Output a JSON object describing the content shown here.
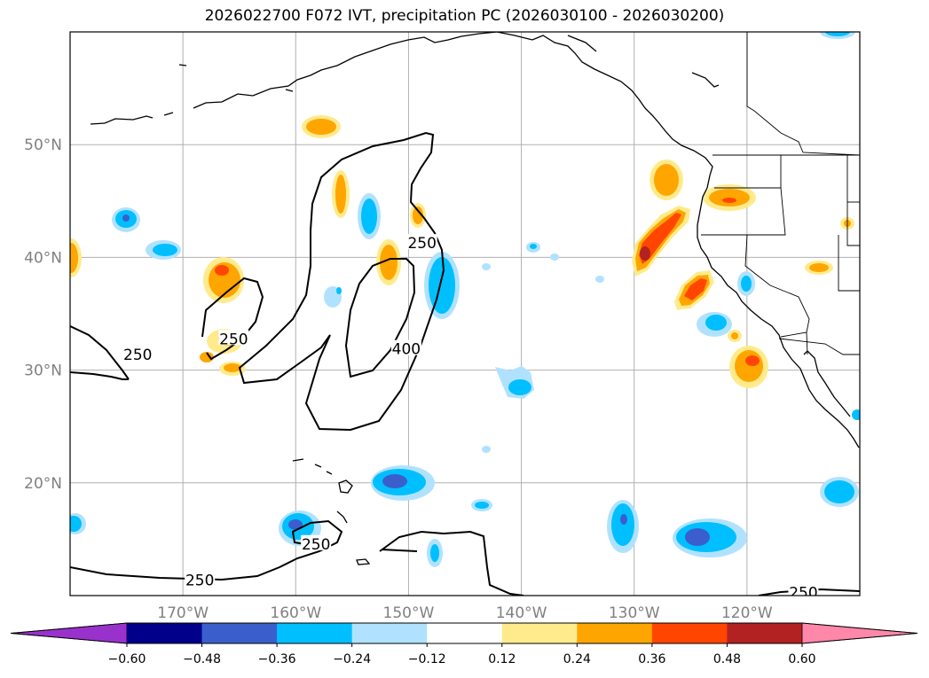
{
  "title": "2026022700 F072 IVT, precipitation PC (2026030100 - 2026030200)",
  "map": {
    "lon_range": [
      -180,
      -110
    ],
    "lat_range": [
      10,
      60
    ],
    "lat_ticks": [
      {
        "value": 20,
        "label": "20°N"
      },
      {
        "value": 30,
        "label": "30°N"
      },
      {
        "value": 40,
        "label": "40°N"
      },
      {
        "value": 50,
        "label": "50°N"
      }
    ],
    "lon_ticks": [
      {
        "value": -170,
        "label": "170°W"
      },
      {
        "value": -160,
        "label": "160°W"
      },
      {
        "value": -150,
        "label": "150°W"
      },
      {
        "value": -140,
        "label": "140°W"
      },
      {
        "value": -130,
        "label": "130°W"
      },
      {
        "value": -120,
        "label": "120°W"
      }
    ],
    "grid": true,
    "ivt_contour_labels": [
      {
        "text": "250",
        "lon": -165.5,
        "lat": 32.7
      },
      {
        "text": "250",
        "lon": -174,
        "lat": 31.3
      },
      {
        "text": "250",
        "lon": -148.8,
        "lat": 41.2
      },
      {
        "text": "400",
        "lon": -150.2,
        "lat": 31.8
      },
      {
        "text": "250",
        "lon": -158.2,
        "lat": 14.5
      },
      {
        "text": "250",
        "lon": -168.5,
        "lat": 11.3
      },
      {
        "text": "250",
        "lon": -115,
        "lat": 10.2
      }
    ]
  },
  "colorbar": {
    "colors": [
      "#9932cc",
      "#00008b",
      "#3a5fcd",
      "#00bfff",
      "#b0e2ff",
      "#ffffff",
      "#ffeb8c",
      "#ffa500",
      "#ff4500",
      "#b22222",
      "#ff88aa"
    ],
    "tick_labels": [
      "−0.60",
      "−0.48",
      "−0.36",
      "−0.24",
      "−0.12",
      "0.12",
      "0.24",
      "0.36",
      "0.48",
      "0.60"
    ]
  }
}
